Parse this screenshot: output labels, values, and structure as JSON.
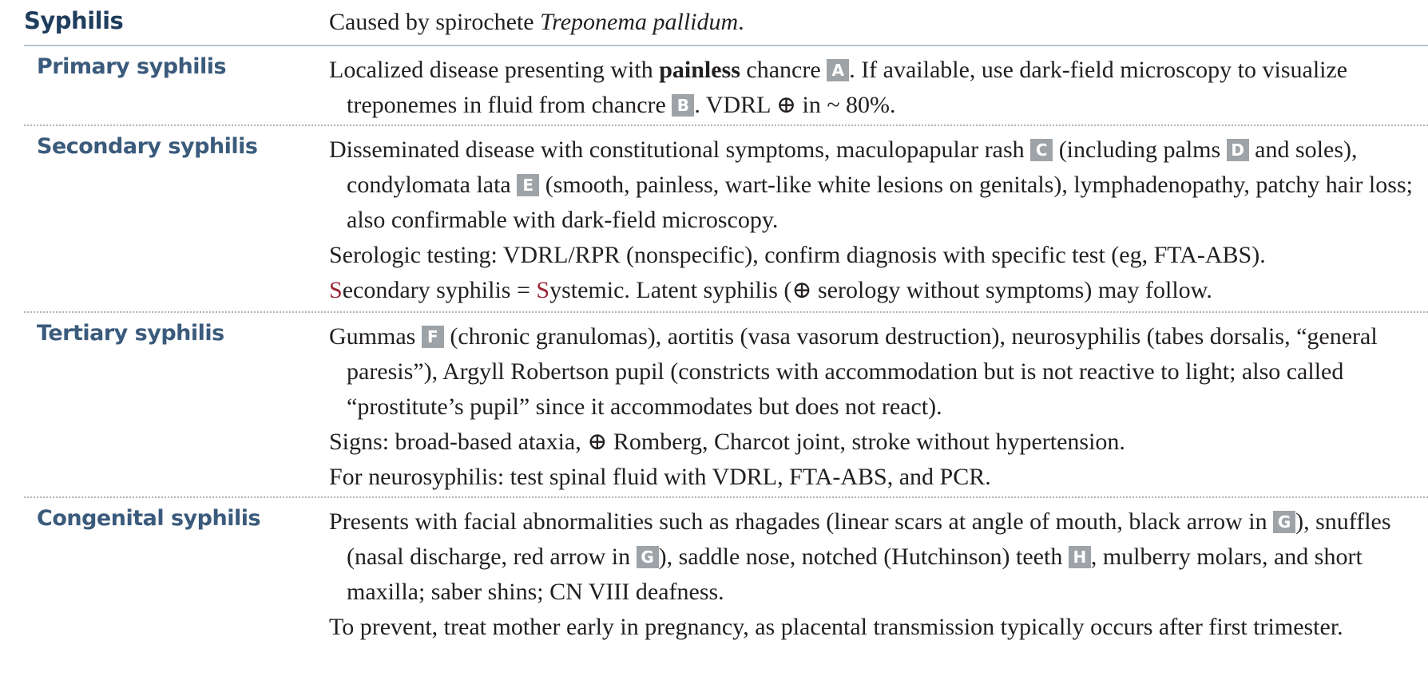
{
  "header": {
    "title": "Syphilis",
    "text_prefix": "Caused by spirochete ",
    "text_italic": "Treponema pallidum",
    "text_suffix": "."
  },
  "rows": [
    {
      "label": "Primary syphilis",
      "p1": {
        "a": "Localized disease presenting with ",
        "bold": "painless",
        "b": " chancre ",
        "box1": "A",
        "c": ". If available, use dark-field microscopy to visualize treponemes in fluid from chancre ",
        "box2": "B",
        "d": ". VDRL ⊕ in ~ 80%."
      }
    },
    {
      "label": "Secondary syphilis",
      "p1": {
        "a": "Disseminated disease with constitutional symptoms, maculopapular rash ",
        "box1": "C",
        "b": " (including palms ",
        "box2": "D",
        "c": " and soles), condylomata lata ",
        "box3": "E",
        "d": " (smooth, painless, wart-like white lesions on genitals), lymphadenopathy, patchy hair loss; also confirmable with dark-field microscopy."
      },
      "p2": "Serologic testing: VDRL/RPR (nonspecific), confirm diagnosis with specific test (eg, FTA-ABS).",
      "p3": {
        "s1": "S",
        "a": "econdary syphilis = ",
        "s2": "S",
        "b": "ystemic. Latent syphilis (⊕ serology without symptoms) may follow."
      }
    },
    {
      "label": "Tertiary syphilis",
      "p1": {
        "a": "Gummas ",
        "box1": "F",
        "b": " (chronic granulomas), aortitis (vasa vasorum destruction), neurosyphilis (tabes dorsalis, “general paresis”), Argyll Robertson pupil (constricts with accommodation but is not reactive to light; also called “prostitute’s pupil” since it accommodates but does not react)."
      },
      "p2": "Signs: broad-based ataxia, ⊕ Romberg, Charcot joint, stroke without hypertension.",
      "p3": "For neurosyphilis: test spinal fluid with VDRL, FTA-ABS, and PCR."
    },
    {
      "label": "Congenital syphilis",
      "p1": {
        "a": "Presents with facial abnormalities such as rhagades (linear scars at angle of mouth, black arrow in ",
        "box1": "G",
        "b": "), snuffles (nasal discharge, red arrow in ",
        "box2": "G",
        "c": "), saddle nose, notched (Hutchinson) teeth ",
        "box3": "H",
        "d": ", mulberry molars, and short maxilla; saber shins; CN VIII deafness."
      },
      "p2": "To prevent, treat mother early in pregnancy, as placental transmission typically occurs after first trimester."
    }
  ],
  "colors": {
    "heading": "#1f3d5c",
    "label": "#3b5b7c",
    "box_bg": "#9ea3a8",
    "accent_red": "#9b2335",
    "rule": "#b9c5d3"
  }
}
